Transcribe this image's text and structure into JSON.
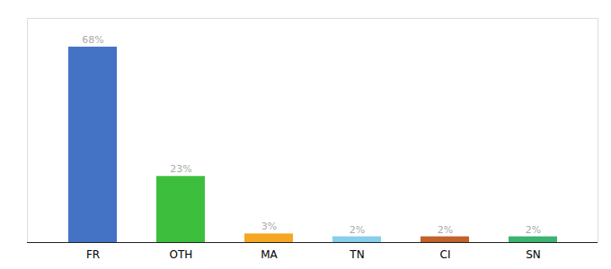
{
  "chart_data": {
    "type": "bar",
    "categories": [
      "FR",
      "OTH",
      "MA",
      "TN",
      "CI",
      "SN"
    ],
    "values": [
      68,
      23,
      3,
      2,
      2,
      2
    ],
    "value_labels": [
      "68%",
      "23%",
      "3%",
      "2%",
      "2%",
      "2%"
    ],
    "colors": [
      "#4472C4",
      "#3DBF3D",
      "#F5A623",
      "#87CEEB",
      "#C0622A",
      "#3CB371"
    ],
    "ylim": [
      0,
      78
    ],
    "data_labels": true,
    "tick_labels": "x",
    "grid": false
  }
}
